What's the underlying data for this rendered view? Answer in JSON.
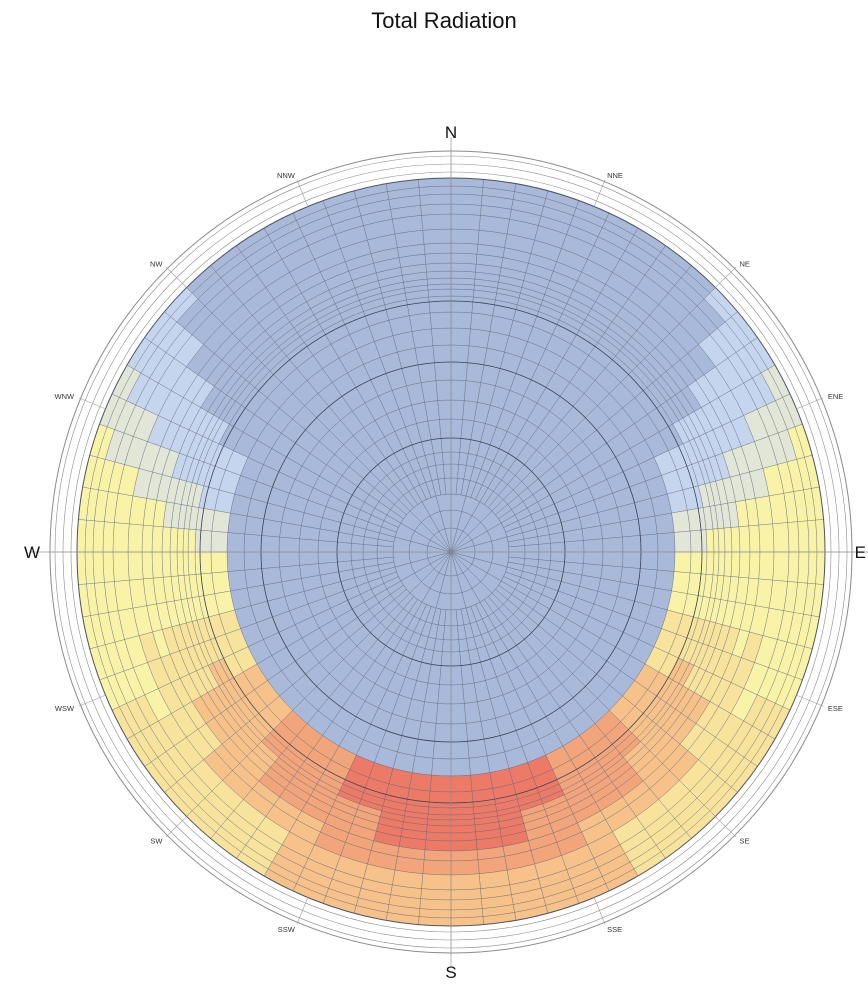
{
  "chart_data": {
    "type": "heatmap",
    "title": "Total Radiation",
    "projection": "polar sky dome",
    "directions": [
      "N",
      "NNE",
      "NE",
      "ENE",
      "E",
      "ESE",
      "SE",
      "SSE",
      "S",
      "SSW",
      "SW",
      "WSW",
      "W",
      "WNW",
      "NW",
      "NNW"
    ],
    "colors": {
      "low": "#a9b9da",
      "low_light": "#c6d5ee",
      "pale": "#e1e6d6",
      "yellow_light": "#f9f3a8",
      "yellow": "#f8e39c",
      "orange_light": "#f6c28a",
      "orange": "#f2a57a",
      "red": "#ed7a66",
      "grid": "#5a6378",
      "rim": "#8a8a8a"
    }
  }
}
